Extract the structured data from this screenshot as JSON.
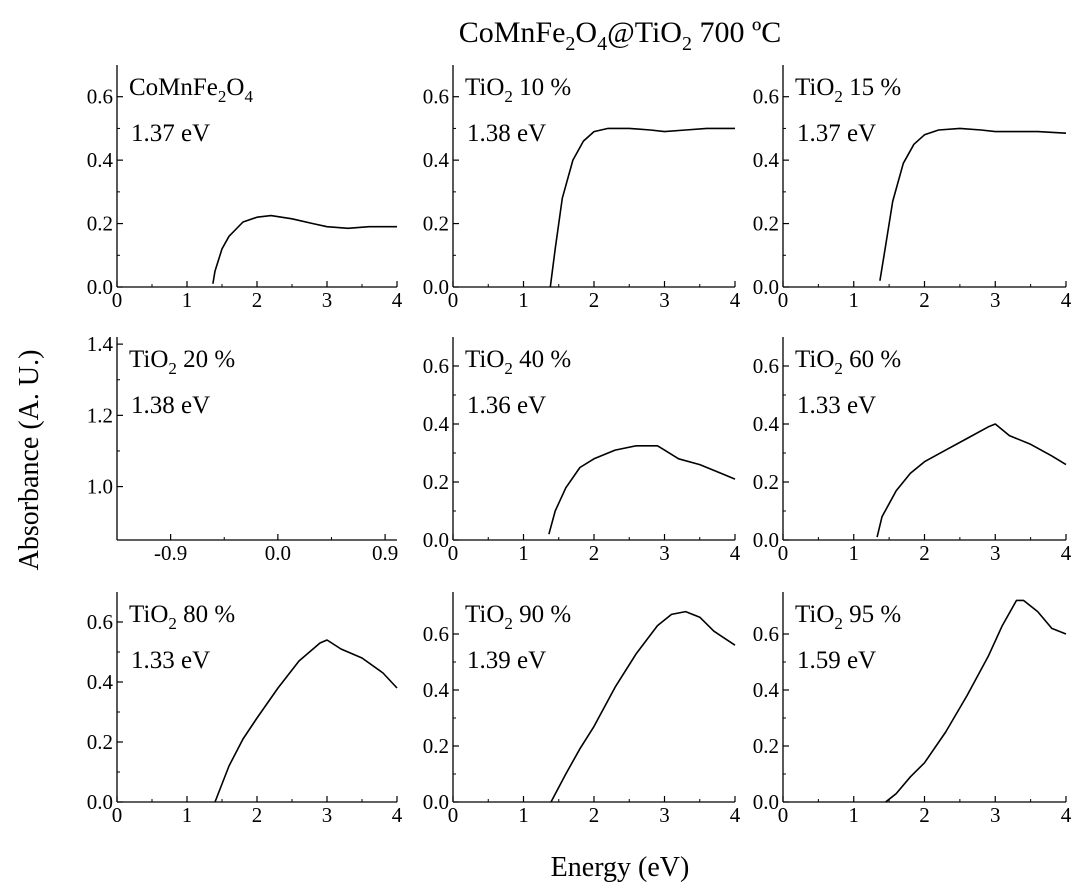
{
  "figure": {
    "title": {
      "main": "CoMnFe",
      "sub1": "2",
      "mid1": "O",
      "sub2": "4",
      "mid2": "@TiO",
      "sub3": "2",
      "tail": " 700 ºC"
    },
    "xlabel": "Energy (eV)",
    "ylabel": "Absorbance (A. U.)",
    "line_color": "#000000"
  },
  "chart_data": [
    {
      "type": "line",
      "label": {
        "base": "CoMnFe",
        "s1": "2",
        "mid": "O",
        "s2": "4"
      },
      "band_gap": "1.37 eV",
      "xlim": [
        0,
        4
      ],
      "ylim": [
        0,
        0.7
      ],
      "xticks": [
        0,
        1,
        2,
        3,
        4
      ],
      "xtick_labels": [
        "0",
        "1",
        "2",
        "3",
        "4"
      ],
      "yticks": [
        0,
        0.2,
        0.4,
        0.6
      ],
      "ytick_labels": [
        "0.0",
        "0.2",
        "0.4",
        "0.6"
      ],
      "series": [
        {
          "x": [
            1.37,
            1.4,
            1.5,
            1.6,
            1.8,
            2.0,
            2.2,
            2.5,
            2.8,
            3.0,
            3.3,
            3.6,
            3.8,
            4.0
          ],
          "y": [
            0.01,
            0.05,
            0.12,
            0.16,
            0.205,
            0.22,
            0.225,
            0.215,
            0.2,
            0.19,
            0.185,
            0.19,
            0.19,
            0.19
          ]
        }
      ]
    },
    {
      "type": "line",
      "label": {
        "base": "TiO",
        "s1": "2",
        "mid": " 10 %",
        "s2": ""
      },
      "band_gap": "1.38 eV",
      "xlim": [
        0,
        4
      ],
      "ylim": [
        0,
        0.7
      ],
      "xticks": [
        0,
        1,
        2,
        3,
        4
      ],
      "xtick_labels": [
        "0",
        "1",
        "2",
        "3",
        "4"
      ],
      "yticks": [
        0,
        0.2,
        0.4,
        0.6
      ],
      "ytick_labels": [
        "0.0",
        "0.2",
        "0.4",
        "0.6"
      ],
      "series": [
        {
          "x": [
            1.38,
            1.45,
            1.55,
            1.7,
            1.85,
            2.0,
            2.2,
            2.5,
            2.8,
            3.0,
            3.3,
            3.6,
            4.0
          ],
          "y": [
            0.0,
            0.12,
            0.28,
            0.4,
            0.46,
            0.49,
            0.5,
            0.5,
            0.495,
            0.49,
            0.495,
            0.5,
            0.5
          ]
        }
      ]
    },
    {
      "type": "line",
      "label": {
        "base": "TiO",
        "s1": "2",
        "mid": " 15 %",
        "s2": ""
      },
      "band_gap": "1.37 eV",
      "xlim": [
        0,
        4
      ],
      "ylim": [
        0,
        0.7
      ],
      "xticks": [
        0,
        1,
        2,
        3,
        4
      ],
      "xtick_labels": [
        "0",
        "1",
        "2",
        "3",
        "4"
      ],
      "yticks": [
        0,
        0.2,
        0.4,
        0.6
      ],
      "ytick_labels": [
        "0.0",
        "0.2",
        "0.4",
        "0.6"
      ],
      "series": [
        {
          "x": [
            1.37,
            1.45,
            1.55,
            1.7,
            1.85,
            2.0,
            2.2,
            2.5,
            2.8,
            3.0,
            3.3,
            3.6,
            4.0
          ],
          "y": [
            0.02,
            0.13,
            0.27,
            0.39,
            0.45,
            0.48,
            0.495,
            0.5,
            0.495,
            0.49,
            0.49,
            0.49,
            0.485
          ]
        }
      ]
    },
    {
      "type": "line",
      "label": {
        "base": "TiO",
        "s1": "2",
        "mid": " 20 %",
        "s2": ""
      },
      "band_gap": "1.38 eV",
      "xlim": [
        -1.35,
        1.0
      ],
      "ylim": [
        0.85,
        1.42
      ],
      "xticks": [
        -0.9,
        0.0,
        0.9
      ],
      "xtick_labels": [
        "-0.9",
        "0.0",
        "0.9"
      ],
      "yticks": [
        1.0,
        1.2,
        1.4
      ],
      "ytick_labels": [
        "1.0",
        "1.2",
        "1.4"
      ],
      "series": []
    },
    {
      "type": "line",
      "label": {
        "base": "TiO",
        "s1": "2",
        "mid": " 40 %",
        "s2": ""
      },
      "band_gap": "1.36 eV",
      "xlim": [
        0,
        4
      ],
      "ylim": [
        0,
        0.7
      ],
      "xticks": [
        0,
        1,
        2,
        3,
        4
      ],
      "xtick_labels": [
        "0",
        "1",
        "2",
        "3",
        "4"
      ],
      "yticks": [
        0,
        0.2,
        0.4,
        0.6
      ],
      "ytick_labels": [
        "0.0",
        "0.2",
        "0.4",
        "0.6"
      ],
      "series": [
        {
          "x": [
            1.36,
            1.45,
            1.6,
            1.8,
            2.0,
            2.3,
            2.6,
            2.9,
            3.0,
            3.2,
            3.5,
            3.8,
            4.0
          ],
          "y": [
            0.02,
            0.1,
            0.18,
            0.25,
            0.28,
            0.31,
            0.325,
            0.325,
            0.31,
            0.28,
            0.26,
            0.23,
            0.21
          ]
        }
      ]
    },
    {
      "type": "line",
      "label": {
        "base": "TiO",
        "s1": "2",
        "mid": " 60 %",
        "s2": ""
      },
      "band_gap": "1.33 eV",
      "xlim": [
        0,
        4
      ],
      "ylim": [
        0,
        0.7
      ],
      "xticks": [
        0,
        1,
        2,
        3,
        4
      ],
      "xtick_labels": [
        "0",
        "1",
        "2",
        "3",
        "4"
      ],
      "yticks": [
        0,
        0.2,
        0.4,
        0.6
      ],
      "ytick_labels": [
        "0.0",
        "0.2",
        "0.4",
        "0.6"
      ],
      "series": [
        {
          "x": [
            1.33,
            1.4,
            1.6,
            1.8,
            2.0,
            2.3,
            2.6,
            2.9,
            3.0,
            3.2,
            3.5,
            3.8,
            4.0
          ],
          "y": [
            0.01,
            0.08,
            0.17,
            0.23,
            0.27,
            0.31,
            0.35,
            0.39,
            0.4,
            0.36,
            0.33,
            0.29,
            0.26
          ]
        }
      ]
    },
    {
      "type": "line",
      "label": {
        "base": "TiO",
        "s1": "2",
        "mid": " 80 %",
        "s2": ""
      },
      "band_gap": "1.33 eV",
      "xlim": [
        0,
        4
      ],
      "ylim": [
        0,
        0.7
      ],
      "xticks": [
        0,
        1,
        2,
        3,
        4
      ],
      "xtick_labels": [
        "0",
        "1",
        "2",
        "3",
        "4"
      ],
      "yticks": [
        0,
        0.2,
        0.4,
        0.6
      ],
      "ytick_labels": [
        "0.0",
        "0.2",
        "0.4",
        "0.6"
      ],
      "series": [
        {
          "x": [
            1.4,
            1.6,
            1.8,
            2.0,
            2.3,
            2.6,
            2.9,
            3.0,
            3.2,
            3.5,
            3.8,
            4.0
          ],
          "y": [
            0.0,
            0.12,
            0.21,
            0.28,
            0.38,
            0.47,
            0.53,
            0.54,
            0.51,
            0.48,
            0.43,
            0.38
          ]
        }
      ]
    },
    {
      "type": "line",
      "label": {
        "base": "TiO",
        "s1": "2",
        "mid": " 90 %",
        "s2": ""
      },
      "band_gap": "1.39 eV",
      "xlim": [
        0,
        4
      ],
      "ylim": [
        0,
        0.75
      ],
      "xticks": [
        0,
        1,
        2,
        3,
        4
      ],
      "xtick_labels": [
        "0",
        "1",
        "2",
        "3",
        "4"
      ],
      "yticks": [
        0,
        0.2,
        0.4,
        0.6
      ],
      "ytick_labels": [
        "0.0",
        "0.2",
        "0.4",
        "0.6"
      ],
      "series": [
        {
          "x": [
            1.39,
            1.6,
            1.8,
            2.0,
            2.3,
            2.6,
            2.9,
            3.1,
            3.3,
            3.5,
            3.7,
            4.0
          ],
          "y": [
            0.0,
            0.1,
            0.19,
            0.27,
            0.41,
            0.53,
            0.63,
            0.67,
            0.68,
            0.66,
            0.61,
            0.56
          ]
        }
      ]
    },
    {
      "type": "line",
      "label": {
        "base": "TiO",
        "s1": "2",
        "mid": " 95 %",
        "s2": ""
      },
      "band_gap": "1.59 eV",
      "xlim": [
        0,
        4
      ],
      "ylim": [
        0,
        0.75
      ],
      "xticks": [
        0,
        1,
        2,
        3,
        4
      ],
      "xtick_labels": [
        "0",
        "1",
        "2",
        "3",
        "4"
      ],
      "yticks": [
        0,
        0.2,
        0.4,
        0.6
      ],
      "ytick_labels": [
        "0.0",
        "0.2",
        "0.4",
        "0.6"
      ],
      "series": [
        {
          "x": [
            1.45,
            1.6,
            1.8,
            2.0,
            2.3,
            2.6,
            2.9,
            3.1,
            3.3,
            3.4,
            3.6,
            3.8,
            4.0
          ],
          "y": [
            0.0,
            0.03,
            0.09,
            0.14,
            0.25,
            0.38,
            0.52,
            0.63,
            0.72,
            0.72,
            0.68,
            0.62,
            0.6
          ]
        }
      ]
    }
  ]
}
